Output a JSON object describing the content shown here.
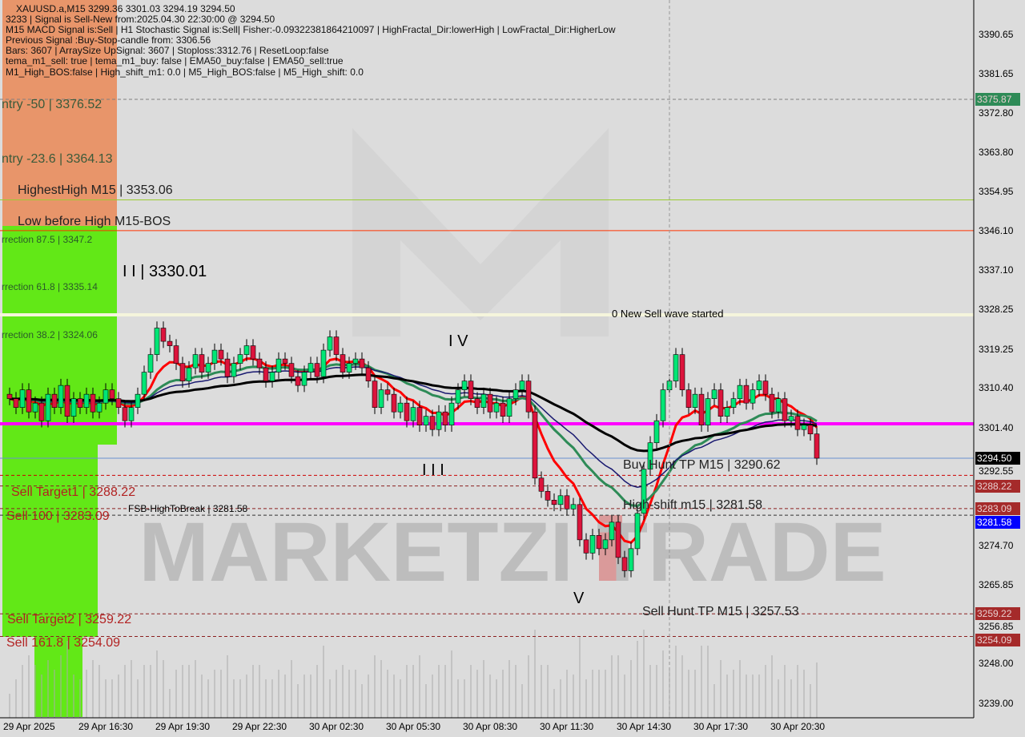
{
  "header": {
    "line1": "XAUUSD.a,M15  3299.36 3301.03 3294.19 3294.50",
    "line2": "3233 | Signal is Sell-New from:2025.04.30 22:30:00 @ 3294.50",
    "line3": "M15 MACD Signal is:Sell | H1 Stochastic Signal is:Sell| Fisher:-0.09322381864210097 | HighFractal_Dir:lowerHigh | LowFractal_Dir:HigherLow",
    "line4": "Previous Signal :Buy-Stop-candle from: 3306.56",
    "line5": "Bars: 3607 | ArraySize UpSignal: 3607 | Stoploss:3312.76 | ResetLoop:false",
    "line6": "tema_m1_sell: true | tema_m1_buy: false | EMA50_buy:false | EMA50_sell:true",
    "line7": "M1_High_BOS:false | High_shift_m1: 0.0 | M5_High_BOS:false | M5_High_shift: 0.0"
  },
  "labels": {
    "entry50": "ntry -50 | 3376.52",
    "entry236": "ntry -23.6 | 3364.13",
    "highest": "HighestHigh   M15 | 3353.06",
    "lowbefore": "Low before High   M15-BOS",
    "corr875": "rrection 87.5 | 3347.2",
    "corr618": "rrection 61.8 | 3335.14",
    "corr382": "rrection 38.2 | 3324.06",
    "wave2": "I I | 3330.01",
    "wave4": "I V",
    "wave3": "I I I",
    "wave5": "V",
    "newsell": "0 New Sell wave started",
    "buyhunt": "Buy Hunt TP M15 | 3290.62",
    "highshift": "High-shift m15 | 3281.58",
    "fsb": "FSB-HighToBreak | 3281.58",
    "target1": "Sell Target1 | 3288.22",
    "sell100": "Sell 100 | 3283.09",
    "target2": "Sell Target2 | 3259.22",
    "sell1618": "Sell 161.8 | 3254.09",
    "sellhunt": "Sell Hunt TP M15 | 3257.53"
  },
  "watermark": "MARKETZI TRADE",
  "chart_data": {
    "type": "candlestick",
    "symbol": "XAUUSD.a",
    "timeframe": "M15",
    "ylim": [
      3236,
      3396
    ],
    "y_ticks": [
      3390.65,
      3381.65,
      3372.8,
      3363.8,
      3354.95,
      3346.1,
      3337.1,
      3328.25,
      3319.25,
      3310.4,
      3301.4,
      3292.55,
      3274.7,
      3265.85,
      3256.85,
      3248.0,
      3239.0
    ],
    "x_ticks": [
      "29 Apr 2025",
      "29 Apr 16:30",
      "29 Apr 19:30",
      "29 Apr 22:30",
      "30 Apr 02:30",
      "30 Apr 05:30",
      "30 Apr 08:30",
      "30 Apr 11:30",
      "30 Apr 14:30",
      "30 Apr 17:30",
      "30 Apr 20:30"
    ],
    "closes": [
      3308,
      3306,
      3310,
      3305,
      3307,
      3303,
      3309,
      3306,
      3311,
      3304,
      3308,
      3306,
      3309,
      3305,
      3307,
      3310,
      3308,
      3306,
      3303,
      3306,
      3309,
      3314,
      3318,
      3324,
      3321,
      3320,
      3316,
      3312,
      3315,
      3318,
      3314,
      3316,
      3319,
      3317,
      3313,
      3316,
      3318,
      3320,
      3317,
      3315,
      3312,
      3314,
      3317,
      3316,
      3313,
      3311,
      3314,
      3316,
      3313,
      3319,
      3322,
      3318,
      3314,
      3316,
      3317,
      3315,
      3312,
      3306,
      3310,
      3309,
      3305,
      3307,
      3303,
      3306,
      3302,
      3304,
      3301,
      3305,
      3302,
      3307,
      3310,
      3312,
      3308,
      3306,
      3309,
      3305,
      3307,
      3304,
      3308,
      3310,
      3312,
      3305,
      3290,
      3287,
      3285,
      3284,
      3286,
      3283,
      3284,
      3276,
      3273,
      3277,
      3274,
      3276,
      3280,
      3272,
      3269,
      3274,
      3282,
      3292,
      3298,
      3303,
      3310,
      3312,
      3318,
      3310,
      3306,
      3309,
      3302,
      3308,
      3310,
      3304,
      3306,
      3308,
      3311,
      3307,
      3310,
      3312,
      3309,
      3305,
      3308,
      3303,
      3304,
      3301,
      3302,
      3300,
      3294.5
    ],
    "levels": [
      {
        "price": 3375.87,
        "color": "#808080",
        "style": "dashed",
        "tag": "3375.87",
        "tag_bg": "#2e8b57"
      },
      {
        "price": 3353.06,
        "color": "#9acd32",
        "style": "solid"
      },
      {
        "price": 3346.1,
        "color": "#ff3300",
        "style": "solid"
      },
      {
        "price": 3327.0,
        "color": "#f5f5dc",
        "style": "thick"
      },
      {
        "price": 3302.3,
        "color": "#ff00ff",
        "style": "thick"
      },
      {
        "price": 3294.5,
        "color": "#6a8fd0",
        "style": "thin",
        "tag": "3294.50",
        "tag_bg": "#000000"
      },
      {
        "price": 3290.62,
        "color": "#cc0000",
        "style": "dashed"
      },
      {
        "price": 3288.22,
        "color": "#8b2020",
        "style": "dashed",
        "tag": "3288.22",
        "tag_bg": "#a52a2a"
      },
      {
        "price": 3283.09,
        "color": "#8b2020",
        "style": "dashed",
        "tag": "3283.09",
        "tag_bg": "#a52a2a"
      },
      {
        "price": 3281.58,
        "color": "#333333",
        "style": "dashed",
        "tag": "3281.58",
        "tag_bg": "#0000ff"
      },
      {
        "price": 3259.22,
        "color": "#8b2020",
        "style": "dashed",
        "tag": "3259.22",
        "tag_bg": "#a52a2a"
      },
      {
        "price": 3254.09,
        "color": "#8b2020",
        "style": "dashed",
        "tag": "3254.09",
        "tag_bg": "#a52a2a"
      }
    ],
    "colors": {
      "bull": "#00e676",
      "bear": "#dc143c",
      "ema_fast": "#ff0000",
      "ema_slow": "#000000",
      "ma_blue": "#191970",
      "ma_green": "#2e8b57"
    }
  }
}
